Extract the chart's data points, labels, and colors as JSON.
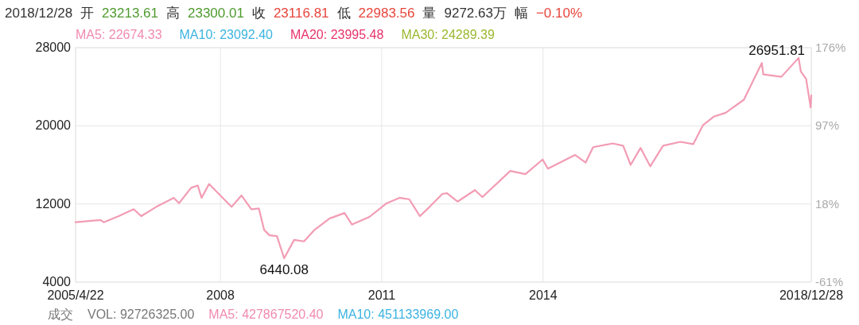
{
  "chart_data": {
    "type": "line",
    "x": [
      "2005-04-22",
      "2005-10-09",
      "2005-10-30",
      "2006-02-09",
      "2006-05-22",
      "2006-07-12",
      "2006-10-22",
      "2007-02-18",
      "2007-03-26",
      "2007-06-16",
      "2007-07-31",
      "2007-08-26",
      "2007-10-16",
      "2008-01-26",
      "2008-03-17",
      "2008-05-23",
      "2008-07-29",
      "2008-09-18",
      "2008-10-24",
      "2008-11-29",
      "2009-01-19",
      "2009-03-09",
      "2009-05-16",
      "2009-07-22",
      "2009-10-01",
      "2010-01-12",
      "2010-04-23",
      "2010-06-13",
      "2010-10-09",
      "2011-02-04",
      "2011-05-02",
      "2011-07-07",
      "2011-09-17",
      "2011-11-22",
      "2012-02-17",
      "2012-03-19",
      "2012-05-30",
      "2012-09-25",
      "2012-11-15",
      "2013-05-23",
      "2013-09-03",
      "2013-12-29",
      "2014-02-03",
      "2014-08-06",
      "2014-10-17",
      "2014-12-07",
      "2015-04-19",
      "2015-06-29",
      "2015-08-19",
      "2015-10-25",
      "2015-12-30",
      "2016-03-26",
      "2016-07-22",
      "2016-10-17",
      "2016-12-23",
      "2017-03-05",
      "2017-05-26",
      "2017-09-26",
      "2018-01-26",
      "2018-02-05",
      "2018-06-08",
      "2018-10-03",
      "2018-10-18",
      "2018-11-23",
      "2018-12-24",
      "2018-12-28"
    ],
    "series": [
      {
        "color": "#f29cb4",
        "values": [
          10125,
          10360,
          10125,
          10750,
          11460,
          10750,
          11700,
          12630,
          12080,
          13650,
          13890,
          12630,
          14040,
          12480,
          11700,
          12870,
          11460,
          11540,
          9340,
          8790,
          8710,
          6440.08,
          8320,
          8170,
          9340,
          10520,
          11070,
          9890,
          10670,
          12080,
          12630,
          12480,
          10750,
          11700,
          13030,
          13100,
          12240,
          13420,
          12710,
          15380,
          15060,
          16550,
          15610,
          17020,
          16240,
          17810,
          18200,
          17960,
          16000,
          17740,
          15850,
          17960,
          18360,
          18120,
          20080,
          20940,
          21340,
          22670,
          26430,
          25260,
          25020,
          26951.81,
          25570,
          24790,
          21880,
          23116.81
        ]
      }
    ],
    "xlim": [
      "2005-04-22",
      "2018-12-28"
    ],
    "xticks": [
      {
        "value": "2005-04-22",
        "label": "2005/4/22"
      },
      {
        "value": "2008-01-01",
        "label": "2008"
      },
      {
        "value": "2011-01-01",
        "label": "2011"
      },
      {
        "value": "2014-01-01",
        "label": "2014"
      },
      {
        "value": "2018-12-28",
        "label": "2018/12/28"
      }
    ],
    "ylim": [
      4000,
      28000
    ],
    "yticks": [
      4000,
      12000,
      20000,
      28000
    ],
    "y2lim": [
      -60.6,
      175.8
    ],
    "y2ticks": [
      {
        "value": -60.6,
        "label": "-61%"
      },
      {
        "value": 18.2,
        "label": "18%"
      },
      {
        "value": 97.0,
        "label": "97%"
      },
      {
        "value": 175.8,
        "label": "176%"
      }
    ],
    "grid": true,
    "annotations": [
      "2018/12/28",
      "开",
      "23213.61",
      "高",
      "23300.01",
      "收",
      "23116.81",
      "低",
      "22983.56",
      "量",
      "9272.63万",
      "幅",
      "−0.10%",
      "MA5: 22674.33",
      "MA10: 23092.40",
      "MA20: 23995.48",
      "MA30: 24289.39",
      "成交",
      "VOL: 92726325.00",
      "MA5: 427867520.40",
      "MA10: 451133969.00",
      {
        "text": "6440.08",
        "x": "2009-03-09",
        "y": 6440.08
      },
      {
        "text": "26951.81",
        "x": "2018-10-03",
        "y": 26951.81
      }
    ]
  }
}
